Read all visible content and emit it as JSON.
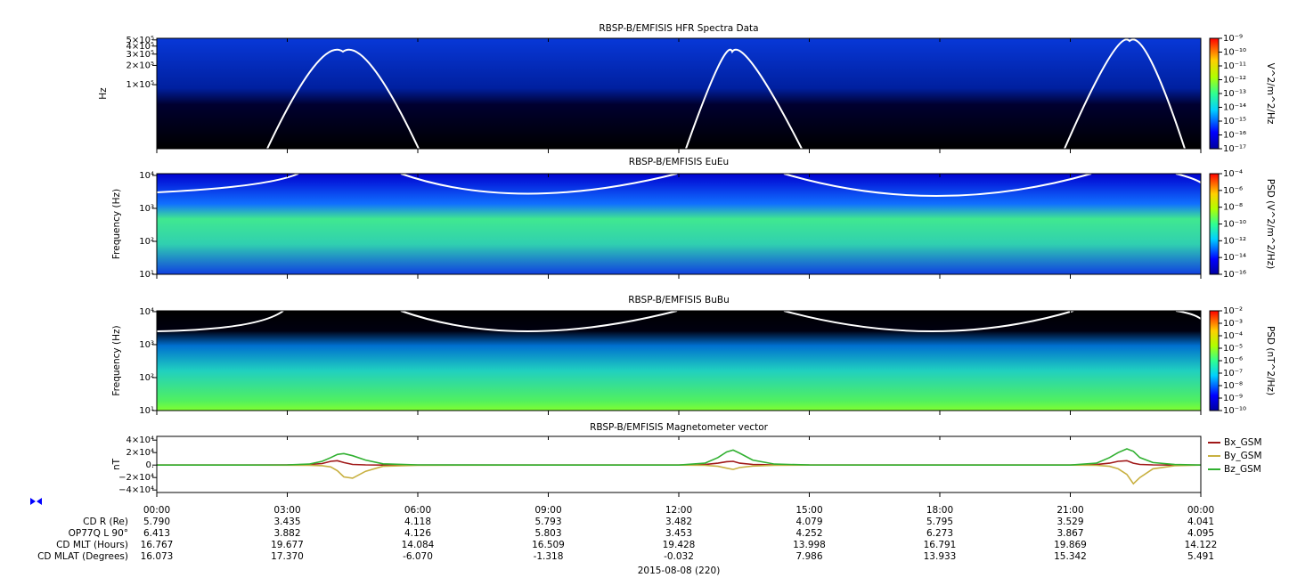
{
  "chart_data": [
    {
      "type": "spectrogram",
      "title": "RBSP-B/EMFISIS  HFR Spectra Data",
      "ylabel": "Hz",
      "log_y": true,
      "ylim": [
        10000,
        530000
      ],
      "yticks": [
        {
          "value": 500000,
          "label": "5×10⁵"
        },
        {
          "value": 400000,
          "label": "4×10⁵"
        },
        {
          "value": 300000,
          "label": "3×10⁵"
        },
        {
          "value": 200000,
          "label": "2×10⁵"
        },
        {
          "value": 100000,
          "label": "1×10⁵"
        }
      ],
      "colorbar_label": "V^2/m^2/Hz",
      "zlim": [
        1e-17,
        1e-09
      ],
      "zticks": [
        {
          "value": 1e-09,
          "label": "10⁻⁹"
        },
        {
          "value": 1e-10,
          "label": "10⁻¹⁰"
        },
        {
          "value": 1e-11,
          "label": "10⁻¹¹"
        },
        {
          "value": 1e-12,
          "label": "10⁻¹²"
        },
        {
          "value": 1e-13,
          "label": "10⁻¹³"
        },
        {
          "value": 1e-14,
          "label": "10⁻¹⁴"
        },
        {
          "value": 1e-15,
          "label": "10⁻¹⁵"
        },
        {
          "value": 1e-16,
          "label": "10⁻¹⁶"
        },
        {
          "value": 1e-17,
          "label": "10⁻¹⁷"
        }
      ]
    },
    {
      "type": "spectrogram",
      "title": "RBSP-B/EMFISIS  EuEu",
      "ylabel": "Frequency (Hz)",
      "log_y": true,
      "ylim": [
        10,
        11300
      ],
      "yticks": [
        {
          "value": 10000,
          "label": "10⁴"
        },
        {
          "value": 1000,
          "label": "10³"
        },
        {
          "value": 100,
          "label": "10²"
        },
        {
          "value": 10,
          "label": "10¹"
        }
      ],
      "colorbar_label": "PSD (V^2/m^2/Hz)",
      "zlim": [
        1e-16,
        0.0001
      ],
      "zticks": [
        {
          "value": 0.0001,
          "label": "10⁻⁴"
        },
        {
          "value": 1e-06,
          "label": "10⁻⁶"
        },
        {
          "value": 1e-08,
          "label": "10⁻⁸"
        },
        {
          "value": 1e-10,
          "label": "10⁻¹⁰"
        },
        {
          "value": 1e-12,
          "label": "10⁻¹²"
        },
        {
          "value": 1e-14,
          "label": "10⁻¹⁴"
        },
        {
          "value": 1e-16,
          "label": "10⁻¹⁶"
        }
      ]
    },
    {
      "type": "spectrogram",
      "title": "RBSP-B/EMFISIS  BuBu",
      "ylabel": "Frequency (Hz)",
      "log_y": true,
      "ylim": [
        10,
        10600
      ],
      "yticks": [
        {
          "value": 10000,
          "label": "10⁴"
        },
        {
          "value": 1000,
          "label": "10³"
        },
        {
          "value": 100,
          "label": "10²"
        },
        {
          "value": 10,
          "label": "10¹"
        }
      ],
      "colorbar_label": "PSD (nT^2/Hz)",
      "zlim": [
        1e-10,
        0.01
      ],
      "zticks": [
        {
          "value": 0.01,
          "label": "10⁻²"
        },
        {
          "value": 0.001,
          "label": "10⁻³"
        },
        {
          "value": 0.0001,
          "label": "10⁻⁴"
        },
        {
          "value": 1e-05,
          "label": "10⁻⁵"
        },
        {
          "value": 1e-06,
          "label": "10⁻⁶"
        },
        {
          "value": 1e-07,
          "label": "10⁻⁷"
        },
        {
          "value": 1e-08,
          "label": "10⁻⁸"
        },
        {
          "value": 1e-09,
          "label": "10⁻⁹"
        },
        {
          "value": 1e-10,
          "label": "10⁻¹⁰"
        }
      ]
    },
    {
      "type": "line",
      "title": "RBSP-B/EMFISIS  Magnetometer vector",
      "ylabel": "nT",
      "ylim": [
        -44000,
        46000
      ],
      "yticks": [
        {
          "value": 40000,
          "label": "4×10⁴"
        },
        {
          "value": 20000,
          "label": "2×10⁴"
        },
        {
          "value": 0,
          "label": "0."
        },
        {
          "value": -20000,
          "label": "−2×10⁴"
        },
        {
          "value": -40000,
          "label": "−4×10⁴"
        }
      ],
      "xlim": [
        0,
        24
      ],
      "xticks": [
        {
          "value": 0,
          "label": "00:00"
        },
        {
          "value": 3,
          "label": "03:00"
        },
        {
          "value": 6,
          "label": "06:00"
        },
        {
          "value": 9,
          "label": "09:00"
        },
        {
          "value": 12,
          "label": "12:00"
        },
        {
          "value": 15,
          "label": "15:00"
        },
        {
          "value": 18,
          "label": "18:00"
        },
        {
          "value": 21,
          "label": "21:00"
        },
        {
          "value": 24,
          "label": "00:00"
        }
      ],
      "x": [
        0,
        2,
        3,
        3.5,
        3.8,
        4.0,
        4.15,
        4.3,
        4.5,
        4.8,
        5.2,
        6,
        9,
        12,
        12.6,
        12.9,
        13.1,
        13.25,
        13.4,
        13.7,
        14.2,
        15,
        18,
        21,
        21.6,
        21.9,
        22.1,
        22.3,
        22.45,
        22.6,
        22.9,
        23.4,
        24
      ],
      "series": [
        {
          "name": "Bx_GSM",
          "color": "#a01818",
          "values": [
            0,
            0,
            200,
            800,
            2500,
            6000,
            7000,
            4000,
            1000,
            300,
            0,
            0,
            0,
            0,
            800,
            3000,
            5500,
            6000,
            3000,
            1000,
            200,
            0,
            0,
            0,
            800,
            3000,
            6000,
            7000,
            3000,
            1000,
            300,
            0,
            0
          ]
        },
        {
          "name": "By_GSM",
          "color": "#c8b040",
          "values": [
            0,
            0,
            -100,
            -300,
            -1000,
            -3000,
            -9000,
            -19000,
            -21000,
            -10000,
            -2000,
            -300,
            0,
            0,
            -500,
            -2000,
            -5000,
            -7000,
            -4000,
            -1500,
            -300,
            0,
            0,
            0,
            -500,
            -2000,
            -6000,
            -15000,
            -30000,
            -20000,
            -6000,
            -1000,
            0
          ]
        },
        {
          "name": "Bz_GSM",
          "color": "#30b030",
          "values": [
            0,
            0,
            300,
            1500,
            6000,
            12000,
            17000,
            18500,
            15000,
            8000,
            2000,
            300,
            0,
            0,
            3000,
            12000,
            21000,
            24000,
            19000,
            8000,
            1500,
            200,
            0,
            0,
            3000,
            12000,
            20000,
            26000,
            22000,
            12000,
            4000,
            800,
            0
          ]
        }
      ]
    }
  ],
  "ephemeris": {
    "x_label": "2015-08-08 (220)",
    "rows": [
      {
        "label": "CD R (Re)",
        "values": [
          "5.790",
          "3.435",
          "4.118",
          "5.793",
          "3.482",
          "4.079",
          "5.795",
          "3.529",
          "4.041"
        ]
      },
      {
        "label": "OP77Q L 90°",
        "values": [
          "6.413",
          "3.882",
          "4.126",
          "5.803",
          "3.453",
          "4.252",
          "6.273",
          "3.867",
          "4.095"
        ]
      },
      {
        "label": "CD MLT (Hours)",
        "values": [
          "16.767",
          "19.677",
          "14.084",
          "16.509",
          "19.428",
          "13.998",
          "16.791",
          "19.869",
          "14.122"
        ]
      },
      {
        "label": "CD MLAT (Degrees)",
        "values": [
          "16.073",
          "17.370",
          "-6.070",
          "-1.318",
          "-0.032",
          "7.986",
          "13.933",
          "15.342",
          "5.491"
        ]
      }
    ]
  }
}
